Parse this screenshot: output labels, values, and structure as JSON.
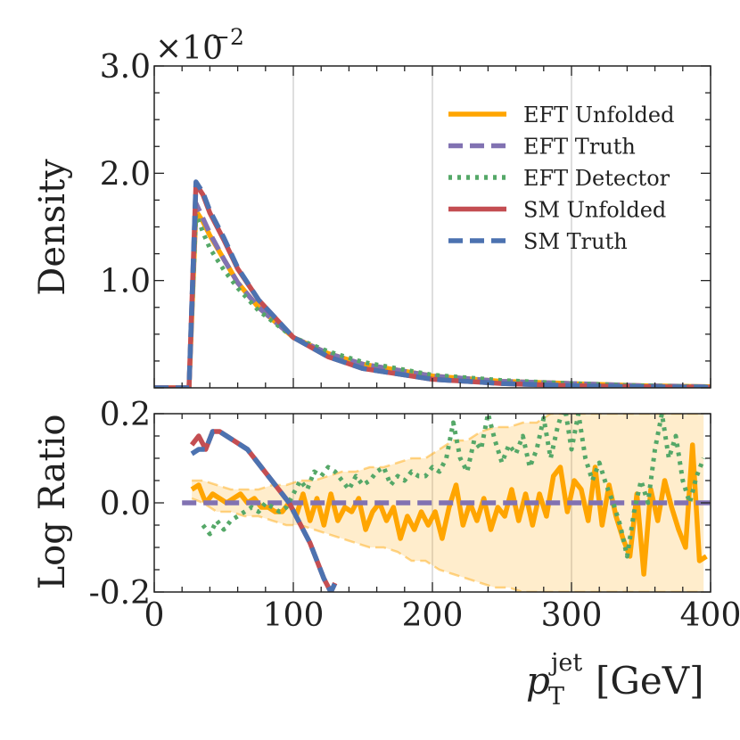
{
  "chart_data": [
    {
      "panel": "top",
      "type": "line",
      "ylabel": "Density",
      "xlim": [
        0,
        400
      ],
      "ylim": [
        0,
        3.0
      ],
      "y_scale_label": "×10",
      "y_scale_exponent": "−2",
      "yticks": [
        {
          "value": 1.0,
          "label": "1.0"
        },
        {
          "value": 2.0,
          "label": "2.0"
        },
        {
          "value": 3.0,
          "label": "3.0"
        }
      ],
      "grid_x": [
        100,
        200,
        300
      ],
      "legend_position": "top-right",
      "series": [
        {
          "name": "EFT Unfolded",
          "style": "solid",
          "color": "#FFA500",
          "x": [
            0,
            20,
            22,
            25,
            30,
            35,
            40,
            50,
            60,
            75,
            100,
            125,
            150,
            200,
            250,
            300,
            350,
            400
          ],
          "y": [
            0,
            0,
            0,
            0,
            1.65,
            1.55,
            1.42,
            1.2,
            0.98,
            0.75,
            0.47,
            0.32,
            0.22,
            0.11,
            0.06,
            0.04,
            0.02,
            0.01
          ]
        },
        {
          "name": "EFT Truth",
          "style": "dashed",
          "color": "#8172B2",
          "x": [
            0,
            20,
            22,
            25,
            30,
            35,
            40,
            50,
            60,
            75,
            100,
            125,
            150,
            200,
            250,
            300,
            350,
            400
          ],
          "y": [
            0,
            0,
            0,
            0,
            1.72,
            1.58,
            1.44,
            1.2,
            0.98,
            0.75,
            0.47,
            0.32,
            0.22,
            0.11,
            0.06,
            0.04,
            0.02,
            0.01
          ]
        },
        {
          "name": "EFT Detector",
          "style": "dotted",
          "color": "#55A868",
          "x": [
            0,
            20,
            22,
            25,
            30,
            35,
            40,
            50,
            60,
            75,
            100,
            125,
            150,
            200,
            250,
            300,
            350,
            400
          ],
          "y": [
            0,
            0,
            0,
            0,
            1.62,
            1.45,
            1.3,
            1.1,
            0.93,
            0.72,
            0.47,
            0.34,
            0.24,
            0.12,
            0.07,
            0.04,
            0.02,
            0.01
          ]
        },
        {
          "name": "SM Unfolded",
          "style": "solid",
          "color": "#C44E52",
          "x": [
            0,
            20,
            22,
            25,
            30,
            35,
            40,
            50,
            60,
            75,
            100,
            125,
            150,
            200,
            250,
            300,
            350,
            400
          ],
          "y": [
            0,
            0,
            0,
            0,
            1.9,
            1.8,
            1.63,
            1.38,
            1.11,
            0.82,
            0.47,
            0.29,
            0.18,
            0.08,
            0.04,
            0.02,
            0.01,
            0.005
          ]
        },
        {
          "name": "SM Truth",
          "style": "dashed",
          "color": "#4C72B0",
          "x": [
            0,
            20,
            22,
            25,
            30,
            35,
            40,
            50,
            60,
            75,
            100,
            125,
            150,
            200,
            250,
            300,
            350,
            400
          ],
          "y": [
            0,
            0,
            0,
            0,
            1.92,
            1.82,
            1.65,
            1.4,
            1.12,
            0.82,
            0.47,
            0.29,
            0.18,
            0.08,
            0.04,
            0.02,
            0.01,
            0.005
          ]
        }
      ]
    },
    {
      "panel": "bottom",
      "type": "line",
      "ylabel": "Log Ratio",
      "xlabel": "p_T^jet [GeV]",
      "xlim": [
        0,
        400
      ],
      "ylim": [
        -0.2,
        0.2
      ],
      "yticks": [
        {
          "value": -0.2,
          "label": "-0.2"
        },
        {
          "value": 0.0,
          "label": "0.0"
        },
        {
          "value": 0.2,
          "label": "0.2"
        }
      ],
      "xticks": [
        {
          "value": 0,
          "label": "0"
        },
        {
          "value": 100,
          "label": "100"
        },
        {
          "value": 200,
          "label": "200"
        },
        {
          "value": 300,
          "label": "300"
        },
        {
          "value": 400,
          "label": "400"
        }
      ],
      "grid_x": [
        100,
        200,
        300
      ],
      "band": {
        "name": "EFT Unfolded uncertainty",
        "color": "#FFA500",
        "x": [
          27,
          35,
          45,
          55,
          65,
          75,
          85,
          95,
          105,
          115,
          125,
          135,
          145,
          155,
          165,
          175,
          185,
          195,
          205,
          215,
          225,
          235,
          245,
          255,
          265,
          275,
          285,
          295,
          305,
          315,
          325,
          335,
          345,
          355,
          365,
          375,
          385,
          395
        ],
        "upper": [
          0.05,
          0.05,
          0.04,
          0.03,
          0.03,
          0.03,
          0.04,
          0.04,
          0.05,
          0.05,
          0.06,
          0.07,
          0.07,
          0.08,
          0.08,
          0.09,
          0.1,
          0.1,
          0.12,
          0.14,
          0.14,
          0.16,
          0.17,
          0.17,
          0.18,
          0.18,
          0.2,
          0.2,
          0.2,
          0.2,
          0.2,
          0.2,
          0.2,
          0.2,
          0.2,
          0.2,
          0.2,
          0.2
        ],
        "lower": [
          0.01,
          0.0,
          -0.02,
          -0.02,
          -0.03,
          -0.03,
          -0.04,
          -0.05,
          -0.05,
          -0.06,
          -0.07,
          -0.08,
          -0.09,
          -0.1,
          -0.1,
          -0.11,
          -0.13,
          -0.13,
          -0.15,
          -0.16,
          -0.17,
          -0.18,
          -0.19,
          -0.19,
          -0.2,
          -0.2,
          -0.2,
          -0.2,
          -0.2,
          -0.2,
          -0.2,
          -0.2,
          -0.2,
          -0.2,
          -0.2,
          -0.2,
          -0.2,
          -0.2
        ]
      },
      "series": [
        {
          "name": "EFT Unfolded",
          "style": "solid",
          "color": "#FFA500",
          "x": [
            27,
            32,
            37,
            42,
            47,
            52,
            57,
            62,
            67,
            72,
            77,
            82,
            87,
            92,
            97,
            102,
            107,
            112,
            117,
            122,
            127,
            132,
            137,
            142,
            147,
            152,
            157,
            162,
            167,
            172,
            177,
            182,
            187,
            192,
            197,
            202,
            207,
            212,
            217,
            222,
            227,
            232,
            237,
            242,
            247,
            252,
            257,
            262,
            267,
            272,
            277,
            282,
            287,
            292,
            297,
            302,
            307,
            312,
            317,
            322,
            327,
            332,
            337,
            342,
            347,
            352,
            357,
            362,
            367,
            372,
            377,
            382,
            387,
            392,
            397
          ],
          "y": [
            0.03,
            0.04,
            0.0,
            0.02,
            0.01,
            0.0,
            0.01,
            0.02,
            0.0,
            0.01,
            -0.01,
            -0.01,
            -0.02,
            -0.02,
            0.0,
            -0.03,
            0.02,
            -0.04,
            0.01,
            -0.05,
            0.02,
            -0.04,
            -0.01,
            -0.02,
            0.01,
            -0.06,
            -0.02,
            0.0,
            -0.04,
            -0.01,
            -0.08,
            -0.03,
            -0.06,
            -0.02,
            -0.05,
            -0.02,
            -0.08,
            -0.01,
            0.04,
            -0.05,
            0.0,
            -0.04,
            0.01,
            -0.06,
            -0.01,
            -0.03,
            0.03,
            -0.04,
            0.02,
            -0.05,
            0.02,
            -0.03,
            0.06,
            0.08,
            -0.02,
            0.05,
            0.03,
            -0.04,
            0.08,
            -0.05,
            0.04,
            -0.03,
            -0.08,
            -0.12,
            0.02,
            -0.16,
            0.03,
            -0.04,
            0.05,
            -0.01,
            -0.06,
            -0.1,
            0.13,
            -0.13,
            -0.12
          ]
        },
        {
          "name": "EFT Truth",
          "style": "dashed",
          "color": "#8172B2",
          "x": [
            20,
            400
          ],
          "y": [
            0.0,
            0.0
          ]
        },
        {
          "name": "EFT Detector",
          "style": "dotted",
          "color": "#55A868",
          "x": [
            35,
            40,
            45,
            50,
            55,
            60,
            65,
            70,
            75,
            80,
            85,
            90,
            95,
            100,
            105,
            110,
            115,
            120,
            125,
            130,
            135,
            140,
            145,
            150,
            155,
            160,
            165,
            170,
            175,
            180,
            185,
            190,
            195,
            200,
            205,
            210,
            215,
            220,
            225,
            230,
            235,
            240,
            245,
            250,
            255,
            260,
            265,
            270,
            275,
            280,
            285,
            290,
            295,
            300,
            305,
            310,
            315,
            320,
            325,
            330,
            335,
            340,
            345,
            350,
            355,
            360,
            365,
            370,
            375,
            380,
            385,
            390,
            395
          ],
          "y": [
            -0.05,
            -0.07,
            -0.04,
            -0.06,
            -0.04,
            -0.03,
            -0.02,
            -0.01,
            -0.02,
            0.0,
            -0.01,
            -0.02,
            -0.01,
            0.02,
            0.05,
            0.03,
            0.07,
            0.06,
            0.08,
            0.07,
            0.05,
            0.03,
            0.06,
            0.04,
            0.05,
            0.07,
            0.08,
            0.04,
            0.06,
            0.05,
            0.07,
            0.06,
            0.06,
            0.08,
            0.07,
            0.1,
            0.18,
            0.1,
            0.07,
            0.14,
            0.12,
            0.2,
            0.14,
            0.09,
            0.13,
            0.11,
            0.15,
            0.08,
            0.12,
            0.19,
            0.1,
            0.17,
            0.22,
            0.12,
            0.2,
            0.1,
            0.05,
            0.09,
            0.04,
            0.0,
            -0.05,
            -0.12,
            -0.02,
            0.05,
            0.0,
            0.12,
            0.2,
            0.1,
            0.15,
            0.05,
            0.0,
            0.06,
            0.1
          ]
        },
        {
          "name": "SM Unfolded",
          "style": "solid",
          "color": "#C44E52",
          "x": [
            27,
            32,
            37,
            42,
            47,
            52,
            57,
            62,
            67,
            72,
            77,
            82,
            87,
            92,
            97,
            102,
            107,
            112,
            117,
            122,
            127,
            130
          ],
          "y": [
            0.13,
            0.15,
            0.12,
            0.16,
            0.16,
            0.15,
            0.14,
            0.13,
            0.12,
            0.1,
            0.08,
            0.06,
            0.04,
            0.02,
            0.0,
            -0.03,
            -0.06,
            -0.09,
            -0.13,
            -0.17,
            -0.2,
            -0.18
          ]
        },
        {
          "name": "SM Truth",
          "style": "dashed",
          "color": "#4C72B0",
          "x": [
            27,
            32,
            37,
            42,
            47,
            52,
            57,
            62,
            67,
            72,
            77,
            82,
            87,
            92,
            97,
            102,
            107,
            112,
            117,
            122,
            127,
            130
          ],
          "y": [
            0.11,
            0.12,
            0.12,
            0.16,
            0.16,
            0.15,
            0.14,
            0.13,
            0.12,
            0.1,
            0.08,
            0.06,
            0.04,
            0.02,
            0.0,
            -0.03,
            -0.06,
            -0.09,
            -0.13,
            -0.17,
            -0.2,
            -0.18
          ]
        }
      ]
    }
  ],
  "labels": {
    "top_ylabel": "Density",
    "bottom_ylabel": "Log Ratio",
    "xlabel_symbol": "p",
    "xlabel_sub": "T",
    "xlabel_sup": "jet",
    "xlabel_unit": "[GeV]"
  },
  "legend": [
    {
      "label": "EFT Unfolded",
      "style": "solid",
      "color": "#FFA500"
    },
    {
      "label": "EFT Truth",
      "style": "dashed",
      "color": "#8172B2"
    },
    {
      "label": "EFT Detector",
      "style": "dotted",
      "color": "#55A868"
    },
    {
      "label": "SM Unfolded",
      "style": "solid",
      "color": "#C44E52"
    },
    {
      "label": "SM Truth",
      "style": "dashed",
      "color": "#4C72B0"
    }
  ]
}
